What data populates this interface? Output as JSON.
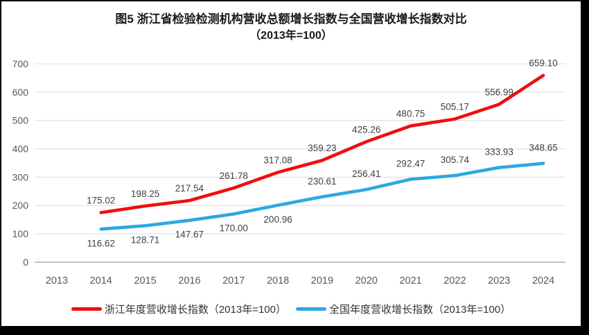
{
  "title": {
    "line1": "图5  浙江省检验检测机构营收总额增长指数与全国营收增长指数对比",
    "line2": "（2013年=100）"
  },
  "axis": {
    "tick_color": "#595959",
    "grid_color": "#dcdcdc",
    "axis_line_color": "#adadad",
    "data_label_color": "#3f3f3f"
  },
  "frame": {
    "border_color": "#000000",
    "background": "#ffffff"
  },
  "chart_data": {
    "type": "line",
    "categories": [
      "2013",
      "2014",
      "2015",
      "2016",
      "2017",
      "2018",
      "2019",
      "2020",
      "2021",
      "2022",
      "2023",
      "2024"
    ],
    "ylim": [
      0,
      700
    ],
    "ytick_step": 100,
    "yticks": [
      "0",
      "100",
      "200",
      "300",
      "400",
      "500",
      "600",
      "700"
    ],
    "grid": "horizontal",
    "legend_position": "bottom",
    "series": [
      {
        "name": "浙江年度营收增长指数（2013年=100）",
        "color": "#f20d0d",
        "start_index": 1,
        "values": [
          175.02,
          198.25,
          217.54,
          261.78,
          317.08,
          359.23,
          425.26,
          480.75,
          505.17,
          556.99,
          659.1
        ],
        "labels": [
          "175.02",
          "198.25",
          "217.54",
          "261.78",
          "317.08",
          "359.23",
          "425.26",
          "480.75",
          "505.17",
          "556.99",
          "659.10"
        ],
        "label_side": [
          "above",
          "above",
          "above",
          "above",
          "above",
          "above",
          "above",
          "above",
          "above",
          "above",
          "above"
        ]
      },
      {
        "name": "全国年度营收增长指数（2013年=100）",
        "color": "#2ba9e1",
        "start_index": 1,
        "values": [
          116.62,
          128.71,
          147.67,
          170.0,
          200.96,
          230.61,
          256.41,
          292.47,
          305.74,
          333.93,
          348.65
        ],
        "labels": [
          "116.62",
          "128.71",
          "147.67",
          "170.00",
          "200.96",
          "230.61",
          "256.41",
          "292.47",
          "305.74",
          "333.93",
          "348.65"
        ],
        "label_side": [
          "below",
          "below",
          "below",
          "below",
          "below",
          "above",
          "above",
          "above",
          "above",
          "above",
          "above"
        ]
      }
    ]
  }
}
